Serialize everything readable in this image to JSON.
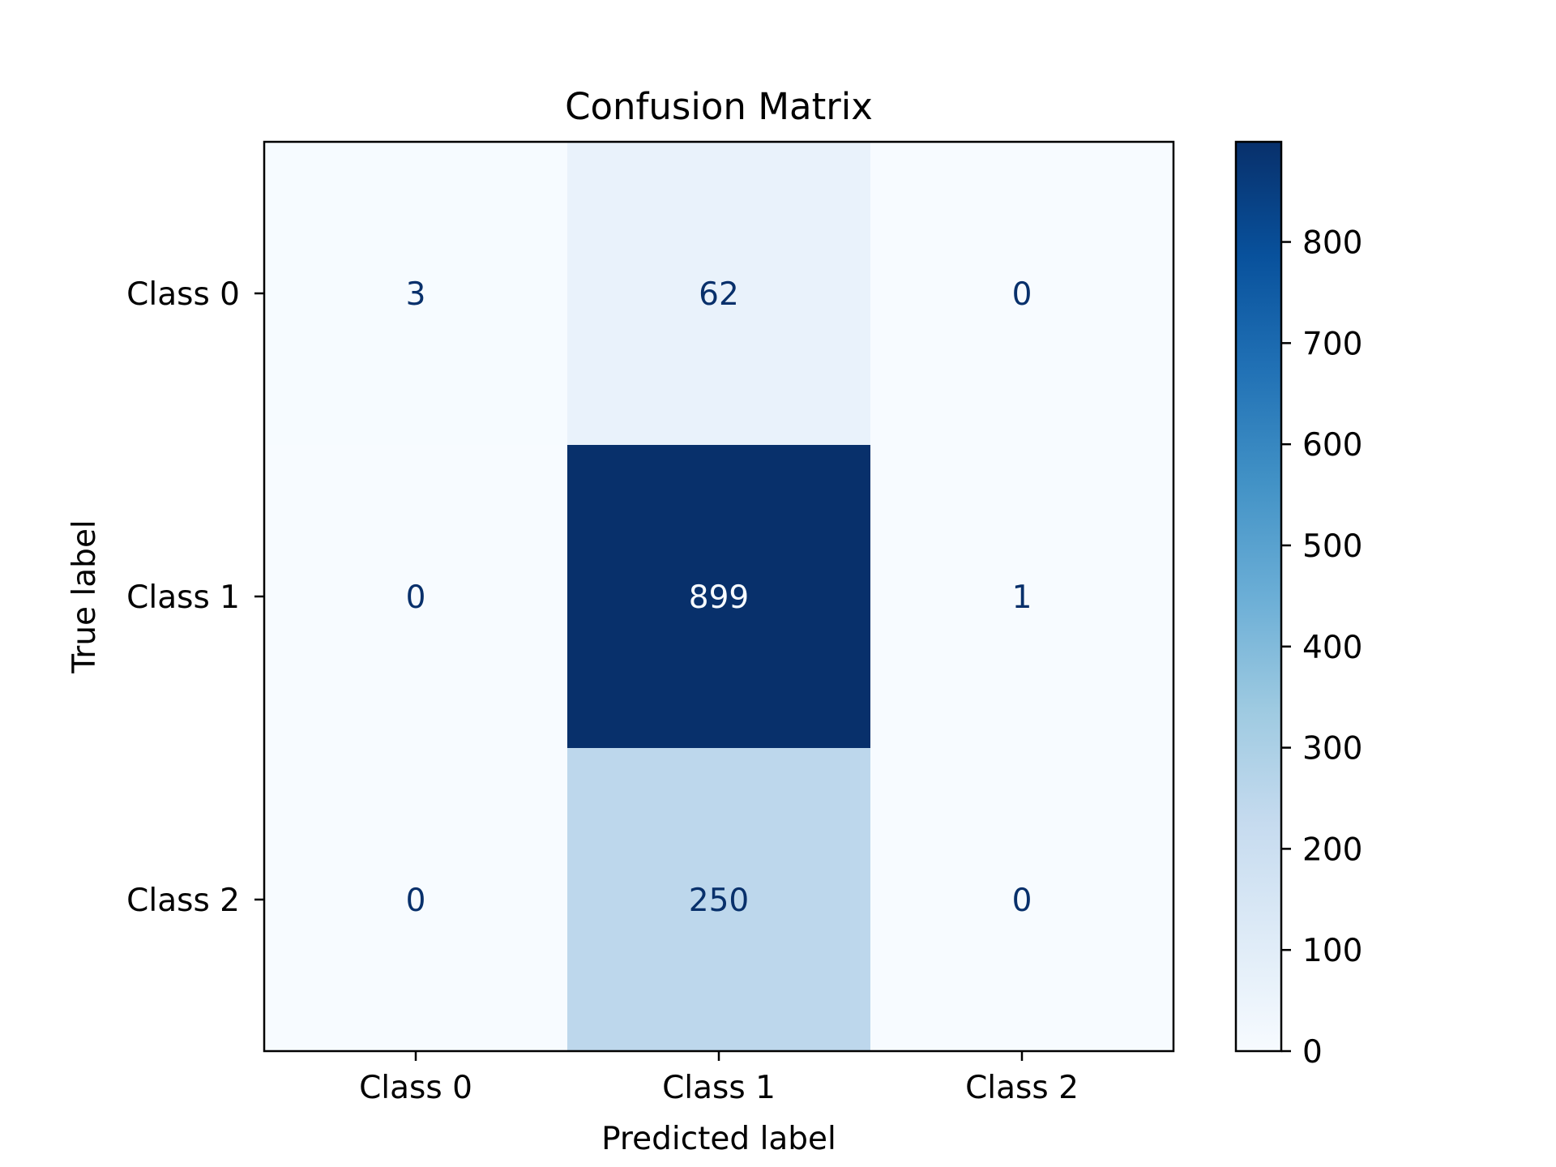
{
  "chart_data": {
    "type": "heatmap",
    "title": "Confusion Matrix",
    "xlabel": "Predicted label",
    "ylabel": "True label",
    "x_categories": [
      "Class 0",
      "Class 1",
      "Class 2"
    ],
    "y_categories": [
      "Class 0",
      "Class 1",
      "Class 2"
    ],
    "matrix": [
      [
        3,
        62,
        0
      ],
      [
        0,
        899,
        1
      ],
      [
        0,
        250,
        0
      ]
    ],
    "colormap": "Blues",
    "colorbar": {
      "min": 0,
      "max": 899,
      "ticks": [
        0,
        100,
        200,
        300,
        400,
        500,
        600,
        700,
        800
      ]
    },
    "grid": false
  }
}
